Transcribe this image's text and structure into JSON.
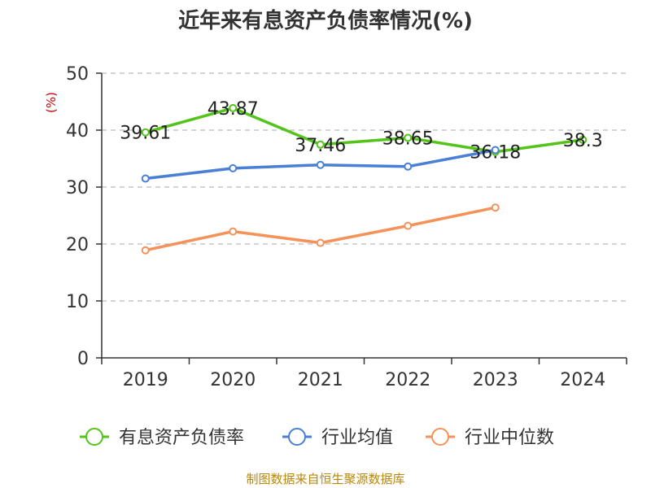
{
  "chart_data": {
    "type": "line",
    "title": "近年来有息资产负债率情况(%)",
    "ylabel": "(%)",
    "xlabel": "",
    "categories": [
      "2019",
      "2020",
      "2021",
      "2022",
      "2023",
      "2024"
    ],
    "ylim": [
      0,
      50
    ],
    "yticks": [
      0,
      10,
      20,
      30,
      40,
      50
    ],
    "grid": true,
    "legend_position": "bottom",
    "series": [
      {
        "name": "有息资产负债率",
        "color": "#52c41a",
        "values": [
          39.61,
          43.87,
          37.46,
          38.65,
          36.18,
          38.3
        ],
        "labels": [
          "39.61",
          "43.87",
          "37.46",
          "38.65",
          "36.18",
          "38.3"
        ]
      },
      {
        "name": "行业均值",
        "color": "#4a7fd6",
        "values": [
          31.5,
          33.3,
          33.9,
          33.6,
          36.5,
          null
        ]
      },
      {
        "name": "行业中位数",
        "color": "#f5925a",
        "values": [
          18.9,
          22.2,
          20.2,
          23.2,
          26.4,
          null
        ]
      }
    ]
  },
  "source": "制图数据来自恒生聚源数据库"
}
